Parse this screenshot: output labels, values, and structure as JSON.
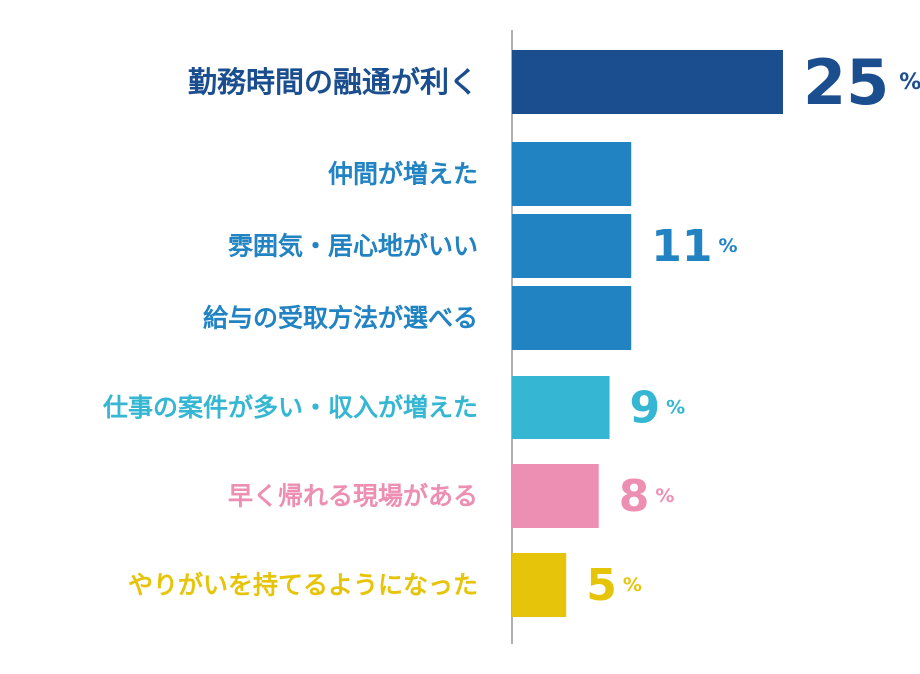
{
  "chart_data": {
    "type": "bar",
    "orientation": "horizontal",
    "title": "",
    "xlabel": "",
    "ylabel": "",
    "xlim": [
      0,
      25
    ],
    "grid": false,
    "legend": "none",
    "unit": "%",
    "categories": [
      "勤務時間の融通が利く",
      "仲間が増えた",
      "雰囲気・居心地がいい",
      "給与の受取方法が選べる",
      "仕事の案件が多い・収入が増えた",
      "早く帰れる現場がある",
      "やりがいを持てるようになった"
    ],
    "values": [
      25,
      11,
      11,
      11,
      9,
      8,
      5
    ],
    "colors": [
      "#1b4e8f",
      "#2283c3",
      "#2283c3",
      "#2283c3",
      "#35b7d3",
      "#ed8fb2",
      "#e6c40a"
    ],
    "value_labels": [
      {
        "text": "25",
        "unit": "%",
        "categories": [
          0
        ],
        "color": "#1b4e8f"
      },
      {
        "text": "11",
        "unit": "%",
        "categories": [
          1,
          2,
          3
        ],
        "color": "#2283c3"
      },
      {
        "text": "9",
        "unit": "%",
        "categories": [
          4
        ],
        "color": "#35b7d3"
      },
      {
        "text": "8",
        "unit": "%",
        "categories": [
          5
        ],
        "color": "#ed8fb2"
      },
      {
        "text": "5",
        "unit": "%",
        "categories": [
          6
        ],
        "color": "#e6c40a"
      }
    ],
    "axis_color": "#b0b0b0"
  }
}
